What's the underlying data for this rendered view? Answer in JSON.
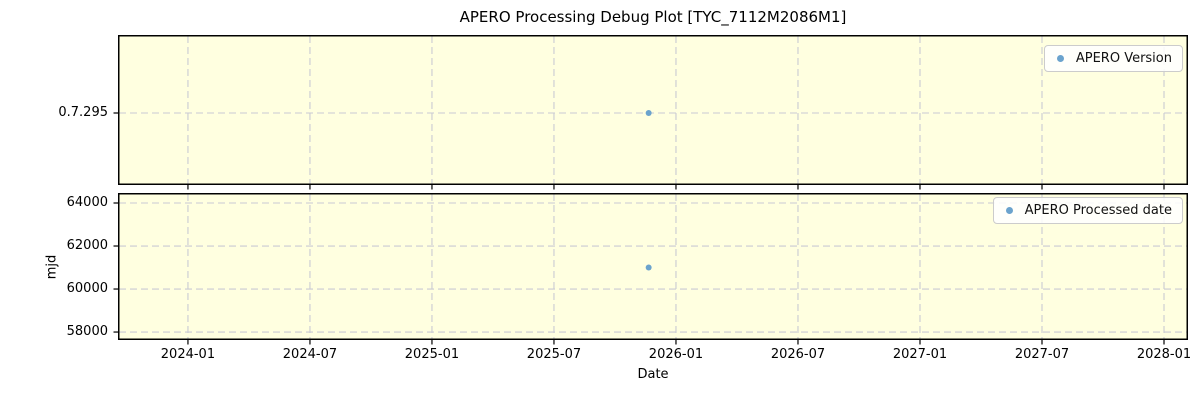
{
  "figure": {
    "title": "APERO Processing Debug Plot [TYC_7112M2086M1]",
    "background": "#ffffff",
    "axes_background": "#ffffe0",
    "grid_color": "#c9cad3",
    "spine_color": "#000000",
    "marker_color": "#6ba3cd"
  },
  "chart_data": [
    {
      "type": "scatter",
      "subplot": "top",
      "grid": true,
      "legend": {
        "label": "APERO Version",
        "position": "upper right"
      },
      "x_tick_labels": [
        "2024-01",
        "2024-07",
        "2025-01",
        "2025-07",
        "2026-01",
        "2026-07",
        "2027-01",
        "2027-07",
        "2028-01"
      ],
      "y_tick_labels": [
        "0.7.295"
      ],
      "series": [
        {
          "name": "APERO Version",
          "points": [
            {
              "date": "2025-11-21",
              "value": "0.7.295"
            }
          ]
        }
      ]
    },
    {
      "type": "scatter",
      "subplot": "bottom",
      "grid": true,
      "xlabel": "Date",
      "ylabel": "mjd",
      "legend": {
        "label": "APERO Processed date",
        "position": "upper right"
      },
      "x_tick_labels": [
        "2024-01",
        "2024-07",
        "2025-01",
        "2025-07",
        "2026-01",
        "2026-07",
        "2027-01",
        "2027-07",
        "2028-01"
      ],
      "y_ticks": [
        58000,
        60000,
        62000,
        64000
      ],
      "ylim": [
        57630,
        64465
      ],
      "series": [
        {
          "name": "APERO Processed date",
          "points": [
            {
              "date": "2025-11-21",
              "value": 61000
            }
          ]
        }
      ]
    }
  ]
}
